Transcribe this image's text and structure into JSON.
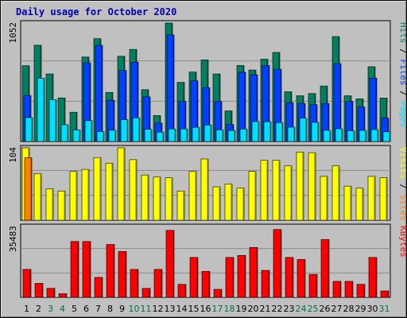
{
  "chart_data": {
    "type": "bar",
    "title": "Daily usage for October 2020",
    "categories": [
      "1",
      "2",
      "3",
      "4",
      "5",
      "6",
      "7",
      "8",
      "9",
      "10",
      "11",
      "12",
      "13",
      "14",
      "15",
      "16",
      "17",
      "18",
      "19",
      "20",
      "21",
      "22",
      "23",
      "24",
      "25",
      "26",
      "27",
      "28",
      "29",
      "30",
      "31"
    ],
    "weekend_days": [
      "3",
      "4",
      "10",
      "11",
      "17",
      "18",
      "24",
      "25",
      "31"
    ],
    "panels": [
      {
        "name": "hits-files-pages",
        "right_label": [
          "Pages",
          "Files",
          "Hits"
        ],
        "left_tick": "1052",
        "max": 1052,
        "series": [
          {
            "name": "Hits",
            "color": "#008060",
            "values": [
              673,
              855,
              600,
              387,
              260,
              750,
              913,
              436,
              757,
              818,
              460,
              230,
              1052,
              525,
              617,
              725,
              600,
              272,
              675,
              635,
              731,
              791,
              442,
              406,
              426,
              493,
              932,
              406,
              379,
              664,
              386
            ]
          },
          {
            "name": "Files",
            "color": "#0040ff",
            "values": [
              409,
              0,
              0,
              0,
              0,
              699,
              854,
              366,
              631,
              704,
              397,
              164,
              947,
              356,
              539,
              479,
              355,
              151,
              615,
              593,
              675,
              642,
              345,
              338,
              328,
              337,
              692,
              355,
              307,
              563,
              208
            ]
          },
          {
            "name": "Pages",
            "color": "#00e0ff",
            "values": [
              212,
              562,
              372,
              149,
              102,
              185,
              89,
              100,
              193,
              210,
              108,
              83,
              111,
              111,
              126,
              146,
              104,
              98,
              110,
              177,
              176,
              167,
              127,
              206,
              170,
              99,
              113,
              95,
              99,
              106,
              86
            ]
          }
        ]
      },
      {
        "name": "visits-sites",
        "right_label": [
          "Sites",
          "Visits"
        ],
        "left_tick": "104",
        "max": 104,
        "series": [
          {
            "name": "Visits",
            "color": "#ffff00",
            "values": [
              104,
              67,
              45,
              42,
              70,
              73,
              90,
              82,
              104,
              87,
              65,
              62,
              61,
              42,
              70,
              88,
              48,
              52,
              46,
              70,
              86,
              86,
              78,
              98,
              97,
              63,
              78,
              49,
              46,
              63,
              61
            ]
          },
          {
            "name": "Sites",
            "color": "#ff8000",
            "values": [
              90,
              0,
              0,
              0,
              0,
              0,
              0,
              0,
              0,
              0,
              0,
              0,
              0,
              0,
              0,
              0,
              0,
              0,
              0,
              0,
              0,
              0,
              0,
              0,
              0,
              0,
              0,
              0,
              0,
              0,
              0
            ]
          }
        ]
      },
      {
        "name": "kbytes",
        "right_label": [
          "KBytes"
        ],
        "left_tick": "35483",
        "max": 35483,
        "series": [
          {
            "name": "KBytes",
            "color": "#ff0000",
            "values": [
              14000,
              7000,
              4500,
              1800,
              28000,
              28000,
              10000,
              26500,
              23000,
              14000,
              4500,
              14000,
              33600,
              6500,
              20000,
              13000,
              4000,
              20000,
              21000,
              25000,
              13500,
              34000,
              20000,
              19000,
              11500,
              29000,
              8000,
              8000,
              6500,
              20000,
              3200
            ]
          }
        ]
      }
    ]
  }
}
